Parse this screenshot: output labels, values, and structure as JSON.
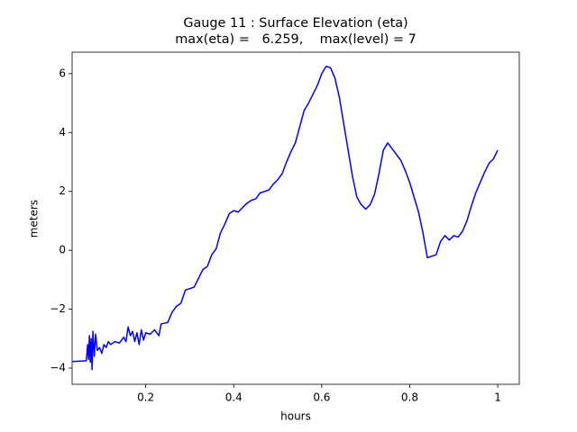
{
  "chart_data": {
    "type": "line",
    "title": "Gauge 11 : Surface Elevation (eta)",
    "subtitle": "max(eta) =   6.259,    max(level) = 7",
    "xlabel": "hours",
    "ylabel": "meters",
    "x": [
      0.033,
      0.065,
      0.068,
      0.07,
      0.072,
      0.074,
      0.076,
      0.078,
      0.08,
      0.083,
      0.086,
      0.09,
      0.095,
      0.1,
      0.105,
      0.11,
      0.115,
      0.12,
      0.13,
      0.14,
      0.15,
      0.155,
      0.16,
      0.165,
      0.17,
      0.175,
      0.18,
      0.185,
      0.19,
      0.195,
      0.2,
      0.21,
      0.22,
      0.23,
      0.235,
      0.25,
      0.26,
      0.27,
      0.28,
      0.29,
      0.3,
      0.31,
      0.32,
      0.33,
      0.34,
      0.35,
      0.36,
      0.37,
      0.38,
      0.39,
      0.4,
      0.41,
      0.42,
      0.43,
      0.44,
      0.45,
      0.46,
      0.47,
      0.48,
      0.49,
      0.5,
      0.51,
      0.52,
      0.53,
      0.54,
      0.55,
      0.56,
      0.57,
      0.58,
      0.59,
      0.6,
      0.61,
      0.62,
      0.63,
      0.64,
      0.65,
      0.66,
      0.67,
      0.68,
      0.69,
      0.7,
      0.71,
      0.72,
      0.73,
      0.74,
      0.75,
      0.76,
      0.77,
      0.78,
      0.79,
      0.8,
      0.81,
      0.82,
      0.83,
      0.84,
      0.85,
      0.86,
      0.87,
      0.88,
      0.89,
      0.9,
      0.91,
      0.92,
      0.93,
      0.94,
      0.95,
      0.96,
      0.97,
      0.98,
      0.99,
      1.0
    ],
    "series": [
      {
        "color": "#0000ff",
        "values": [
          -3.78,
          -3.75,
          -3.2,
          -3.7,
          -2.9,
          -3.8,
          -3.0,
          -4.05,
          -2.75,
          -3.6,
          -2.85,
          -3.4,
          -3.3,
          -3.5,
          -3.2,
          -3.3,
          -3.1,
          -3.2,
          -3.1,
          -3.15,
          -2.95,
          -3.1,
          -2.6,
          -2.9,
          -2.75,
          -3.1,
          -2.8,
          -3.2,
          -2.7,
          -3.05,
          -2.8,
          -2.85,
          -2.7,
          -2.9,
          -2.5,
          -2.45,
          -2.1,
          -1.9,
          -1.8,
          -1.35,
          -1.3,
          -1.25,
          -0.95,
          -0.65,
          -0.55,
          -0.15,
          0.05,
          0.6,
          0.9,
          1.25,
          1.35,
          1.3,
          1.45,
          1.6,
          1.7,
          1.75,
          1.95,
          2.0,
          2.05,
          2.25,
          2.4,
          2.6,
          3.0,
          3.35,
          3.65,
          4.2,
          4.75,
          5.0,
          5.3,
          5.6,
          6.0,
          6.25,
          6.2,
          5.85,
          5.2,
          4.3,
          3.4,
          2.5,
          1.8,
          1.55,
          1.4,
          1.55,
          1.9,
          2.6,
          3.4,
          3.65,
          3.45,
          3.25,
          3.05,
          2.7,
          2.3,
          1.8,
          1.3,
          0.6,
          -0.25,
          -0.2,
          -0.15,
          0.3,
          0.5,
          0.35,
          0.5,
          0.45,
          0.65,
          1.0,
          1.5,
          1.95,
          2.3,
          2.65,
          2.95,
          3.1,
          3.4
        ]
      }
    ],
    "xlim": [
      0.0327,
      1.049
    ],
    "ylim": [
      -4.55,
      6.73
    ],
    "xticks": [
      0.2,
      0.4,
      0.6,
      0.8,
      1.0
    ],
    "yticks": [
      {
        "value": -4,
        "label": "−4"
      },
      {
        "value": -2,
        "label": "−2"
      },
      0,
      2,
      4,
      6
    ],
    "grid": false
  }
}
